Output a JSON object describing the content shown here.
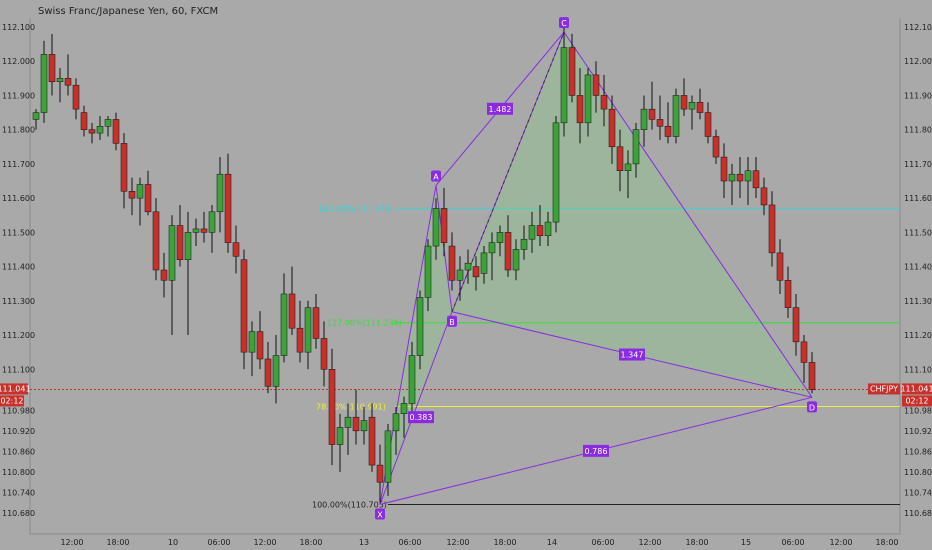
{
  "header": {
    "title": "Swiss Franc/Japanese Yen, 60, FXCM"
  },
  "colors": {
    "background": "#a9a9a9",
    "up": "#3ea23a",
    "down": "#c8302b",
    "pattern": "#8a2be2",
    "fib_cyan": "#33d6d6",
    "fib_green": "#33e033",
    "fib_yellow": "#eeee33",
    "price_line": "#c8302b"
  },
  "chart_data": {
    "type": "candlestick",
    "title": "Swiss Franc/Japanese Yen, 60, FXCM",
    "ylim": [
      110.64,
      112.14
    ],
    "y_ticks": [
      "112.100",
      "112.000",
      "111.900",
      "111.800",
      "111.700",
      "111.600",
      "111.500",
      "111.400",
      "111.300",
      "111.200",
      "111.100",
      "111.041",
      "110.980",
      "110.920",
      "110.860",
      "110.800",
      "110.740",
      "110.680"
    ],
    "x_ticks": [
      "12:00",
      "18:00",
      "10",
      "06:00",
      "12:00",
      "18:00",
      "13",
      "06:00",
      "12:00",
      "18:00",
      "14",
      "06:00",
      "12:00",
      "18:00",
      "15",
      "06:00",
      "12:00",
      "18:00"
    ],
    "x_tick_positions": [
      0,
      0,
      0,
      0,
      0,
      0,
      0,
      0,
      0,
      0,
      0,
      0,
      0,
      0,
      0,
      0,
      0,
      0
    ],
    "candles": [
      [
        111.83,
        111.86,
        111.8,
        111.85
      ],
      [
        111.85,
        112.06,
        111.82,
        112.02
      ],
      [
        112.02,
        112.08,
        111.9,
        111.94
      ],
      [
        111.94,
        111.98,
        111.88,
        111.95
      ],
      [
        111.95,
        112.02,
        111.9,
        111.93
      ],
      [
        111.93,
        111.95,
        111.83,
        111.86
      ],
      [
        111.85,
        111.87,
        111.78,
        111.8
      ],
      [
        111.8,
        111.82,
        111.76,
        111.79
      ],
      [
        111.79,
        111.84,
        111.77,
        111.81
      ],
      [
        111.81,
        111.84,
        111.78,
        111.83
      ],
      [
        111.83,
        111.85,
        111.74,
        111.76
      ],
      [
        111.76,
        111.79,
        111.57,
        111.62
      ],
      [
        111.62,
        111.66,
        111.55,
        111.6
      ],
      [
        111.6,
        111.66,
        111.52,
        111.64
      ],
      [
        111.64,
        111.68,
        111.55,
        111.56
      ],
      [
        111.56,
        111.6,
        111.36,
        111.39
      ],
      [
        111.39,
        111.44,
        111.31,
        111.36
      ],
      [
        111.36,
        111.55,
        111.2,
        111.52
      ],
      [
        111.52,
        111.58,
        111.4,
        111.42
      ],
      [
        111.42,
        111.56,
        111.2,
        111.5
      ],
      [
        111.5,
        111.54,
        111.46,
        111.51
      ],
      [
        111.51,
        111.56,
        111.47,
        111.5
      ],
      [
        111.5,
        111.58,
        111.44,
        111.56
      ],
      [
        111.56,
        111.72,
        111.5,
        111.67
      ],
      [
        111.67,
        111.73,
        111.44,
        111.47
      ],
      [
        111.47,
        111.52,
        111.38,
        111.43
      ],
      [
        111.42,
        111.45,
        111.1,
        111.15
      ],
      [
        111.15,
        111.24,
        111.08,
        111.21
      ],
      [
        111.21,
        111.27,
        111.1,
        111.13
      ],
      [
        111.13,
        111.18,
        111.03,
        111.05
      ],
      [
        111.05,
        111.2,
        111.0,
        111.14
      ],
      [
        111.14,
        111.38,
        111.12,
        111.32
      ],
      [
        111.32,
        111.4,
        111.2,
        111.22
      ],
      [
        111.22,
        111.3,
        111.12,
        111.15
      ],
      [
        111.15,
        111.3,
        111.1,
        111.28
      ],
      [
        111.28,
        111.32,
        111.16,
        111.19
      ],
      [
        111.19,
        111.24,
        111.05,
        111.1
      ],
      [
        111.1,
        111.16,
        110.82,
        110.88
      ],
      [
        110.88,
        110.97,
        110.8,
        110.93
      ],
      [
        110.93,
        111.0,
        110.85,
        110.96
      ],
      [
        110.96,
        111.04,
        110.88,
        110.92
      ],
      [
        110.92,
        110.99,
        110.88,
        110.95
      ],
      [
        110.96,
        111.0,
        110.8,
        110.82
      ],
      [
        110.82,
        110.88,
        110.71,
        110.77
      ],
      [
        110.77,
        110.94,
        110.73,
        110.92
      ],
      [
        110.92,
        110.99,
        110.85,
        110.97
      ],
      [
        110.97,
        111.02,
        110.9,
        111.0
      ],
      [
        111.0,
        111.18,
        110.97,
        111.14
      ],
      [
        111.14,
        111.33,
        111.1,
        111.31
      ],
      [
        111.31,
        111.48,
        111.27,
        111.46
      ],
      [
        111.46,
        111.6,
        111.42,
        111.57
      ],
      [
        111.57,
        111.63,
        111.43,
        111.47
      ],
      [
        111.46,
        111.5,
        111.33,
        111.36
      ],
      [
        111.36,
        111.43,
        111.3,
        111.39
      ],
      [
        111.39,
        111.45,
        111.35,
        111.41
      ],
      [
        111.4,
        111.43,
        111.33,
        111.37
      ],
      [
        111.38,
        111.46,
        111.35,
        111.44
      ],
      [
        111.44,
        111.5,
        111.36,
        111.47
      ],
      [
        111.47,
        111.52,
        111.43,
        111.5
      ],
      [
        111.5,
        111.55,
        111.37,
        111.39
      ],
      [
        111.39,
        111.48,
        111.36,
        111.45
      ],
      [
        111.45,
        111.52,
        111.42,
        111.48
      ],
      [
        111.48,
        111.56,
        111.44,
        111.52
      ],
      [
        111.52,
        111.58,
        111.46,
        111.49
      ],
      [
        111.49,
        111.56,
        111.46,
        111.53
      ],
      [
        111.53,
        111.84,
        111.5,
        111.82
      ],
      [
        111.82,
        112.1,
        111.78,
        112.04
      ],
      [
        112.04,
        112.08,
        111.88,
        111.9
      ],
      [
        111.9,
        111.98,
        111.76,
        111.82
      ],
      [
        111.82,
        111.98,
        111.78,
        111.96
      ],
      [
        111.96,
        112.0,
        111.85,
        111.9
      ],
      [
        111.9,
        111.96,
        111.81,
        111.86
      ],
      [
        111.86,
        111.9,
        111.7,
        111.75
      ],
      [
        111.75,
        111.8,
        111.62,
        111.68
      ],
      [
        111.68,
        111.74,
        111.6,
        111.7
      ],
      [
        111.7,
        111.82,
        111.66,
        111.8
      ],
      [
        111.8,
        111.9,
        111.75,
        111.86
      ],
      [
        111.86,
        111.94,
        111.8,
        111.83
      ],
      [
        111.83,
        111.9,
        111.77,
        111.81
      ],
      [
        111.81,
        111.88,
        111.76,
        111.78
      ],
      [
        111.78,
        111.92,
        111.76,
        111.9
      ],
      [
        111.9,
        111.95,
        111.84,
        111.86
      ],
      [
        111.86,
        111.9,
        111.8,
        111.88
      ],
      [
        111.88,
        111.92,
        111.83,
        111.85
      ],
      [
        111.85,
        111.88,
        111.76,
        111.78
      ],
      [
        111.78,
        111.8,
        111.7,
        111.72
      ],
      [
        111.72,
        111.76,
        111.6,
        111.65
      ],
      [
        111.65,
        111.7,
        111.58,
        111.67
      ],
      [
        111.67,
        111.72,
        111.6,
        111.65
      ],
      [
        111.65,
        111.72,
        111.58,
        111.68
      ],
      [
        111.68,
        111.72,
        111.6,
        111.63
      ],
      [
        111.63,
        111.66,
        111.55,
        111.58
      ],
      [
        111.58,
        111.62,
        111.4,
        111.44
      ],
      [
        111.44,
        111.48,
        111.32,
        111.36
      ],
      [
        111.36,
        111.4,
        111.25,
        111.28
      ],
      [
        111.28,
        111.32,
        111.14,
        111.18
      ],
      [
        111.18,
        111.2,
        111.06,
        111.12
      ],
      [
        111.12,
        111.15,
        111.03,
        111.04
      ]
    ],
    "harmonic_points": [
      {
        "label": "X",
        "i": 43,
        "y": 110.705
      },
      {
        "label": "A",
        "i": 50,
        "y": 111.637
      },
      {
        "label": "B",
        "i": 52,
        "y": 111.268
      },
      {
        "label": "C",
        "i": 66,
        "y": 112.085
      },
      {
        "label": "D",
        "i": 97,
        "y": 111.018
      }
    ],
    "ratio_labels": [
      {
        "text": "1.482",
        "between": [
          "A",
          "C"
        ]
      },
      {
        "text": "0.383",
        "between": [
          "X",
          "B"
        ]
      },
      {
        "text": "1.347",
        "between": [
          "B",
          "D"
        ]
      },
      {
        "text": "0.786",
        "between": [
          "X",
          "D"
        ]
      }
    ],
    "fib_levels": [
      {
        "label": "161.80%(111.570)",
        "y": 111.57,
        "color": "#33d6d6"
      },
      {
        "label": "127.00%(111.236)",
        "y": 111.236,
        "color": "#33e033"
      },
      {
        "label": "78.60%(110.991)",
        "y": 110.991,
        "color": "#eeee33"
      },
      {
        "label": "100.00%(110.705)",
        "y": 110.705,
        "color": "#222222"
      }
    ],
    "current_price": {
      "value": "111.041",
      "y": 111.041,
      "countdown": "02:12",
      "symbol": "CHFJPY"
    }
  }
}
